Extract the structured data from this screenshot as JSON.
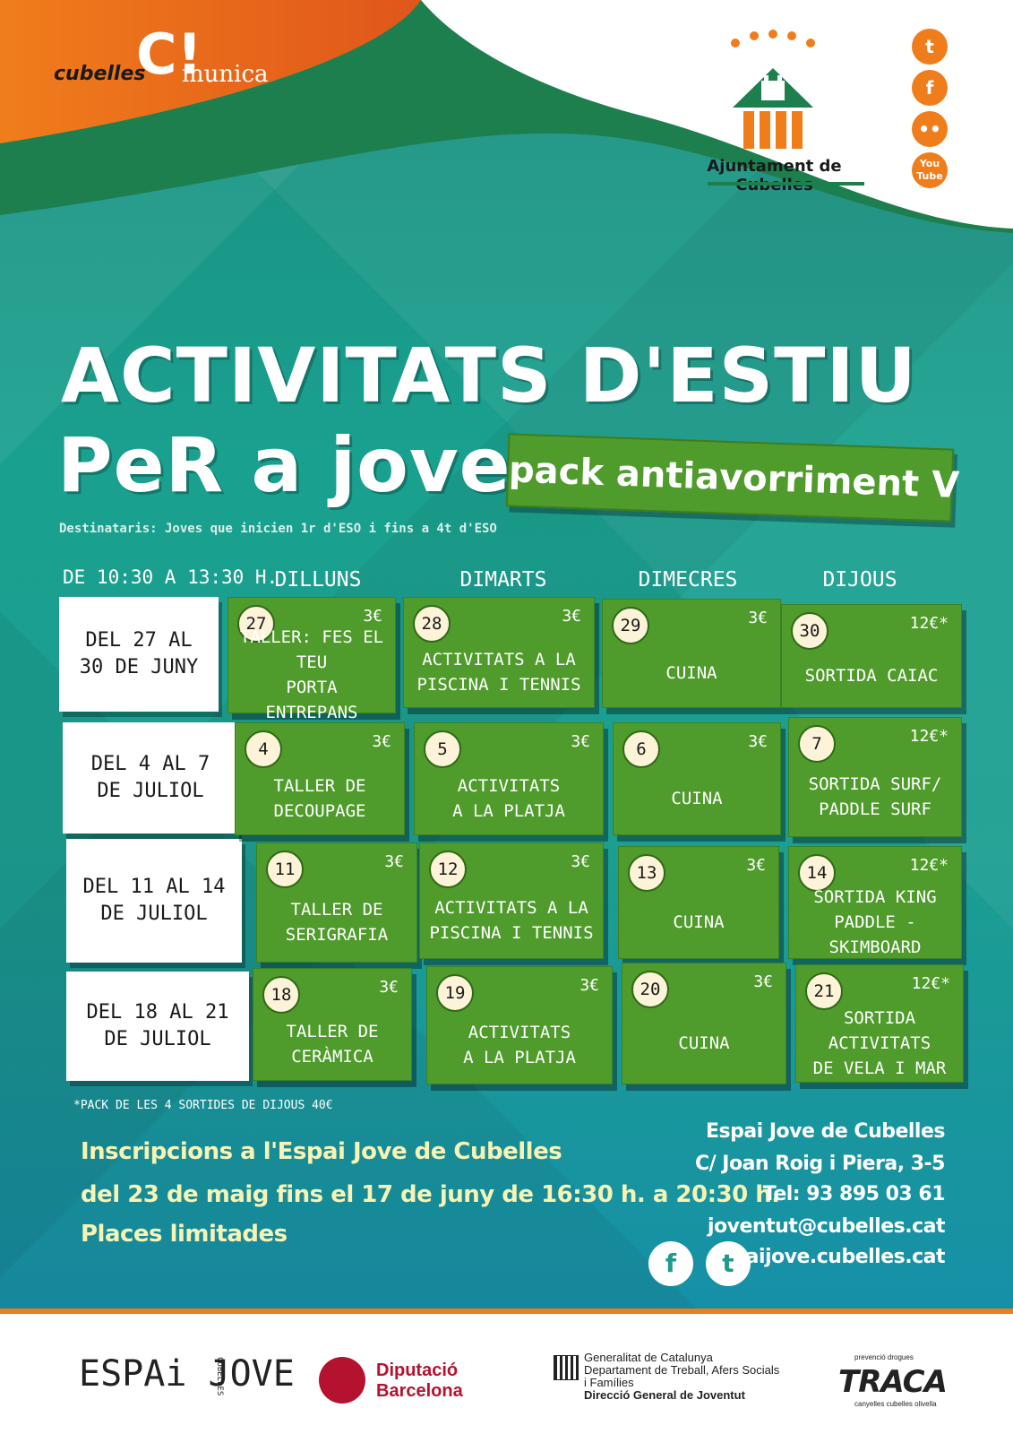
{
  "header": {
    "brand_word1": "cubelles",
    "brand_mark": "C!",
    "brand_word2": "munica",
    "council_name": "Ajuntament de Cubelles",
    "social_icons": [
      {
        "icon": "twitter-icon",
        "glyph": "t"
      },
      {
        "icon": "facebook-icon",
        "glyph": "f"
      },
      {
        "icon": "flickr-icon",
        "glyph": "••"
      },
      {
        "icon": "youtube-icon",
        "line1": "You",
        "line2": "Tube"
      }
    ],
    "colors": {
      "orange": "#f07d1b",
      "green": "#1e7f4e",
      "teal": "#1e9b8c"
    }
  },
  "title": {
    "line1": "ACTIVITATS D'ESTIU",
    "line2": "PeR a joves",
    "pack": "pack antiavorriment V",
    "audience": "Destinataris:  Joves que inicien 1r d'ESO i fins a 4t d'ESO"
  },
  "schedule": {
    "hours": "DE 10:30 A 13:30 H.",
    "days": [
      "DILLUNS",
      "DIMARTS",
      "DIMECRES",
      "DIJOUS"
    ],
    "weeks": [
      {
        "label": "DEL 27 AL\n30 DE JUNY",
        "cells": [
          {
            "num": "27",
            "price": "3€",
            "activity": "TALLER: FES EL TEU\nPORTA ENTREPANS"
          },
          {
            "num": "28",
            "price": "3€",
            "activity": "ACTIVITATS A LA\nPISCINA I TENNIS"
          },
          {
            "num": "29",
            "price": "3€",
            "activity": "CUINA"
          },
          {
            "num": "30",
            "price": "12€*",
            "activity": "SORTIDA CAIAC"
          }
        ]
      },
      {
        "label": "DEL 4 AL 7\nDE JULIOL",
        "cells": [
          {
            "num": "4",
            "price": "3€",
            "activity": "TALLER DE\nDECOUPAGE"
          },
          {
            "num": "5",
            "price": "3€",
            "activity": "ACTIVITATS\nA LA  PLATJA"
          },
          {
            "num": "6",
            "price": "3€",
            "activity": "CUINA"
          },
          {
            "num": "7",
            "price": "12€*",
            "activity": "SORTIDA SURF/\nPADDLE SURF"
          }
        ]
      },
      {
        "label": "DEL 11 AL 14\nDE JULIOL",
        "cells": [
          {
            "num": "11",
            "price": "3€",
            "activity": "TALLER DE\nSERIGRAFIA"
          },
          {
            "num": "12",
            "price": "3€",
            "activity": "ACTIVITATS A LA\nPISCINA I TENNIS"
          },
          {
            "num": "13",
            "price": "3€",
            "activity": "CUINA"
          },
          {
            "num": "14",
            "price": "12€*",
            "activity": "SORTIDA KING\nPADDLE - SKIMBOARD"
          }
        ]
      },
      {
        "label": "DEL 18 AL 21\nDE JULIOL",
        "cells": [
          {
            "num": "18",
            "price": "3€",
            "activity": "TALLER DE\nCERÀMICA"
          },
          {
            "num": "19",
            "price": "3€",
            "activity": "ACTIVITATS\nA LA  PLATJA"
          },
          {
            "num": "20",
            "price": "3€",
            "activity": "CUINA"
          },
          {
            "num": "21",
            "price": "12€*",
            "activity": "SORTIDA ACTIVITATS\nDE VELA I MAR"
          }
        ]
      }
    ],
    "pack_note": "*PACK DE LES 4 SORTIDES DE DIJOUS 40€"
  },
  "registration": {
    "line1": "Inscripcions a l'Espai Jove de Cubelles",
    "line2": "del 23 de maig fins el 17 de juny de 16:30 h. a 20:30 h.",
    "line3": "Places limitades"
  },
  "contact": {
    "name": "Espai Jove de Cubelles",
    "address": "C/ Joan Roig i Piera, 3-5",
    "phone": "Tel: 93 895 03 61",
    "email": "joventut@cubelles.cat",
    "web": "espaijove.cubelles.cat",
    "facebook_glyph": "f",
    "twitter_glyph": "t"
  },
  "footer": {
    "espai_jove": "ESPAi JOVE",
    "espai_jove_side": "CUBELLES",
    "diputacio_line1": "Diputació",
    "diputacio_line2": "Barcelona",
    "generalitat_line1": "Generalitat de Catalunya",
    "generalitat_line2": "Departament de Treball, Afers Socials",
    "generalitat_line3": "i Famílies",
    "generalitat_line4": "Direcció General de Joventut",
    "traca_top": "prevenció drogues",
    "traca": "TRACA",
    "traca_bottom": "canyelles  cubelles  olivella"
  }
}
